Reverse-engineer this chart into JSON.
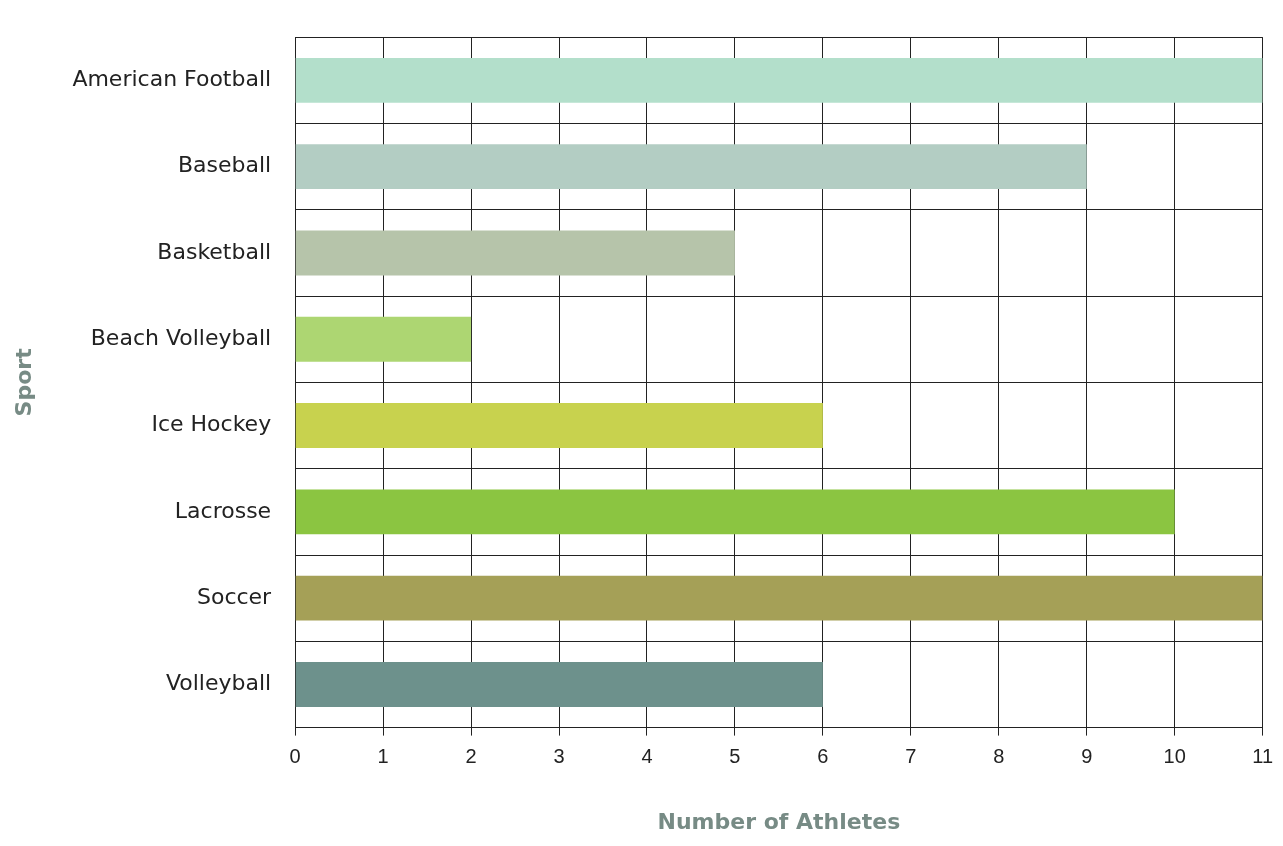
{
  "chart_data": {
    "type": "bar",
    "orientation": "horizontal",
    "xlabel": "Number of Athletes",
    "ylabel": "Sport",
    "categories": [
      "American Football",
      "Baseball",
      "Basketball",
      "Beach Volleyball",
      "Ice Hockey",
      "Lacrosse",
      "Soccer",
      "Volleyball"
    ],
    "values": [
      11,
      9,
      5,
      2,
      6,
      10,
      11,
      6
    ],
    "colors": [
      "#b3dfcb",
      "#b3cdc3",
      "#b6c4aa",
      "#add672",
      "#c8d24e",
      "#8bc541",
      "#a5a057",
      "#6d918c"
    ],
    "xlim": [
      0,
      11
    ],
    "xticks": [
      0,
      1,
      2,
      3,
      4,
      5,
      6,
      7,
      8,
      9,
      10,
      11
    ],
    "grid": true,
    "legend": false
  }
}
